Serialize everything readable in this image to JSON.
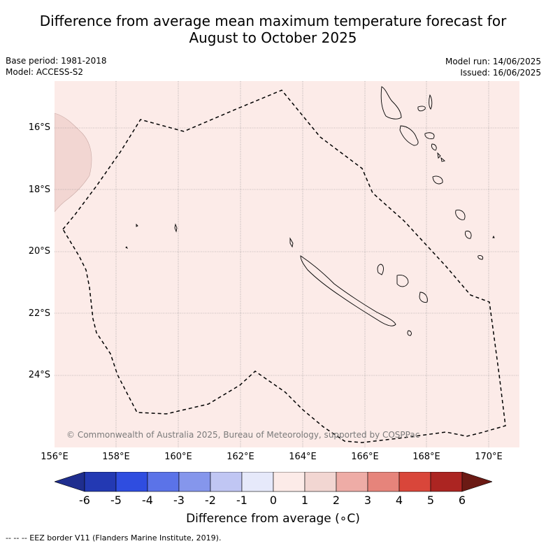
{
  "title": {
    "line1": "Difference from average mean maximum temperature forecast for",
    "line2": "August to October 2025"
  },
  "meta": {
    "base_period": "Base period: 1981-2018",
    "model": "Model: ACCESS-S2",
    "model_run": "Model run: 14/06/2025",
    "issued": "Issued: 16/06/2025"
  },
  "map": {
    "copyright": "© Commonwealth of Australia 2025, Bureau of Meteorology, supported by COSPPac",
    "lat_labels": [
      "16°S",
      "18°S",
      "20°S",
      "22°S",
      "24°S"
    ],
    "lon_labels": [
      "156°E",
      "158°E",
      "160°E",
      "162°E",
      "164°E",
      "166°E",
      "168°E",
      "170°E"
    ],
    "background_color": "#fcebe8",
    "anomaly_patch_color": "#f2d6d2"
  },
  "colorbar": {
    "title": "Difference from average (∘C)",
    "ticks": [
      "-6",
      "-5",
      "-4",
      "-3",
      "-2",
      "-1",
      "0",
      "1",
      "2",
      "3",
      "4",
      "5",
      "6"
    ],
    "colors": [
      "#1f2e8f",
      "#2339b3",
      "#2f4de0",
      "#5b73e8",
      "#8596ec",
      "#c0c6f3",
      "#e6e9fa",
      "#fcebe8",
      "#f2d6d2",
      "#eeaca6",
      "#e6847b",
      "#d9463a",
      "#ac2522",
      "#6b1a14"
    ]
  },
  "footnote": "--  --  -- EEZ border V11 (Flanders Marine Institute, 2019)."
}
